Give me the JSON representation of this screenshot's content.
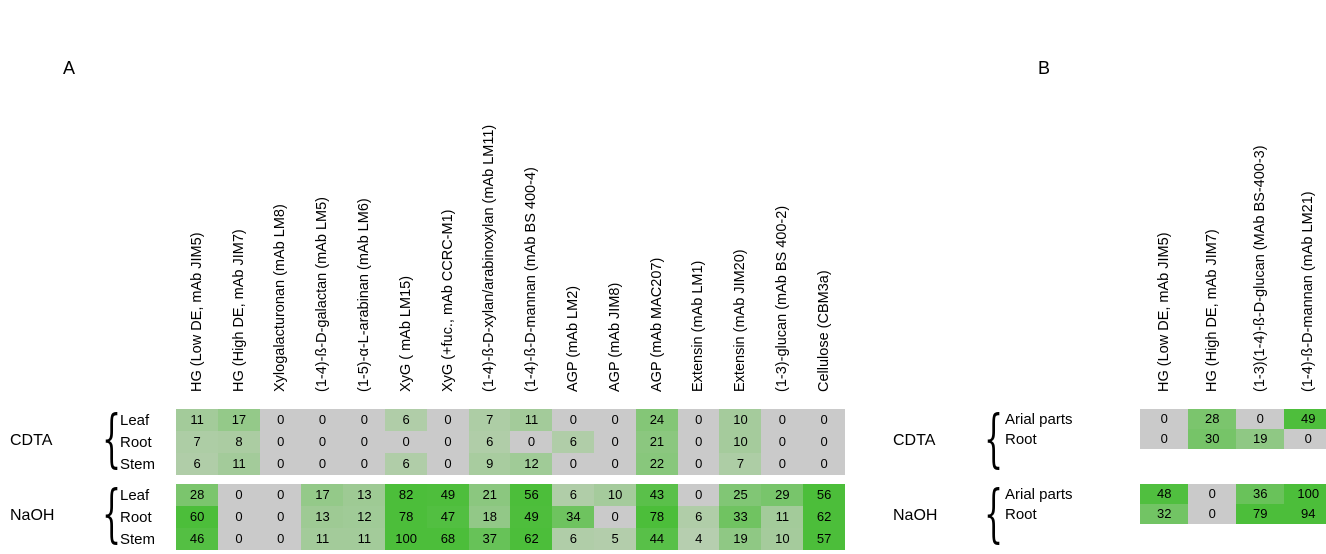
{
  "panel_a": {
    "letter": "A",
    "columns": [
      "HG (Low DE, mAb JIM5)",
      "HG (High DE, mAb JIM7)",
      "Xylogalacturonan (mAb LM8)",
      "(1-4)-ß-D-galactan (mAb LM5)",
      "(1-5)-α-L-arabinan (mAb LM6)",
      "XyG ( mAb LM15)",
      "XyG (+fuc., mAb CCRC-M1)",
      "(1-4)-ß-D-xylan/arabinoxylan (mAb LM11)",
      "(1-4)-ß-D-mannan (mAb BS 400-4)",
      "AGP (mAb LM2)",
      "AGP (mAb JIM8)",
      "AGP (mAb MAC207)",
      "Extensin (mAb LM1)",
      "Extensin (mAb JIM20)",
      "(1-3)-glucan (mAb BS 400-2)",
      "Cellulose (CBM3a)"
    ],
    "groups": [
      {
        "label": "CDTA",
        "rows": [
          {
            "label": "Leaf",
            "values": [
              11,
              17,
              0,
              0,
              0,
              6,
              0,
              7,
              11,
              0,
              0,
              24,
              0,
              10,
              0,
              0
            ]
          },
          {
            "label": "Root",
            "values": [
              7,
              8,
              0,
              0,
              0,
              0,
              0,
              6,
              0,
              6,
              0,
              21,
              0,
              10,
              0,
              0
            ]
          },
          {
            "label": "Stem",
            "values": [
              6,
              11,
              0,
              0,
              0,
              6,
              0,
              9,
              12,
              0,
              0,
              22,
              0,
              7,
              0,
              0
            ]
          }
        ]
      },
      {
        "label": "NaOH",
        "rows": [
          {
            "label": "Leaf",
            "values": [
              28,
              0,
              0,
              17,
              13,
              82,
              49,
              21,
              56,
              6,
              10,
              43,
              0,
              25,
              29,
              56
            ]
          },
          {
            "label": "Root",
            "values": [
              60,
              0,
              0,
              13,
              12,
              78,
              47,
              18,
              49,
              34,
              0,
              78,
              6,
              33,
              11,
              62
            ]
          },
          {
            "label": "Stem",
            "values": [
              46,
              0,
              0,
              11,
              11,
              100,
              68,
              37,
              62,
              6,
              5,
              44,
              4,
              19,
              10,
              57
            ]
          }
        ]
      }
    ]
  },
  "panel_b": {
    "letter": "B",
    "columns": [
      "HG (Low DE, mAb JIM5)",
      "HG (High DE, mAb JIM7)",
      "(1-3)(1-4)-ß-D-glucan (MAb BS-400-3)",
      "(1-4)-ß-D-mannan (mAb LM21)"
    ],
    "groups": [
      {
        "label": "CDTA",
        "rows": [
          {
            "label": "Arial parts",
            "values": [
              0,
              28,
              0,
              49
            ]
          },
          {
            "label": "Root",
            "values": [
              0,
              30,
              19,
              0
            ]
          }
        ]
      },
      {
        "label": "NaOH",
        "rows": [
          {
            "label": "Arial parts",
            "values": [
              48,
              0,
              36,
              100
            ]
          },
          {
            "label": "Root",
            "values": [
              32,
              0,
              79,
              94
            ]
          }
        ]
      }
    ]
  },
  "colors": {
    "zero": "#cacaca",
    "low": "#c4d0be",
    "high": "#4cbe3a"
  }
}
